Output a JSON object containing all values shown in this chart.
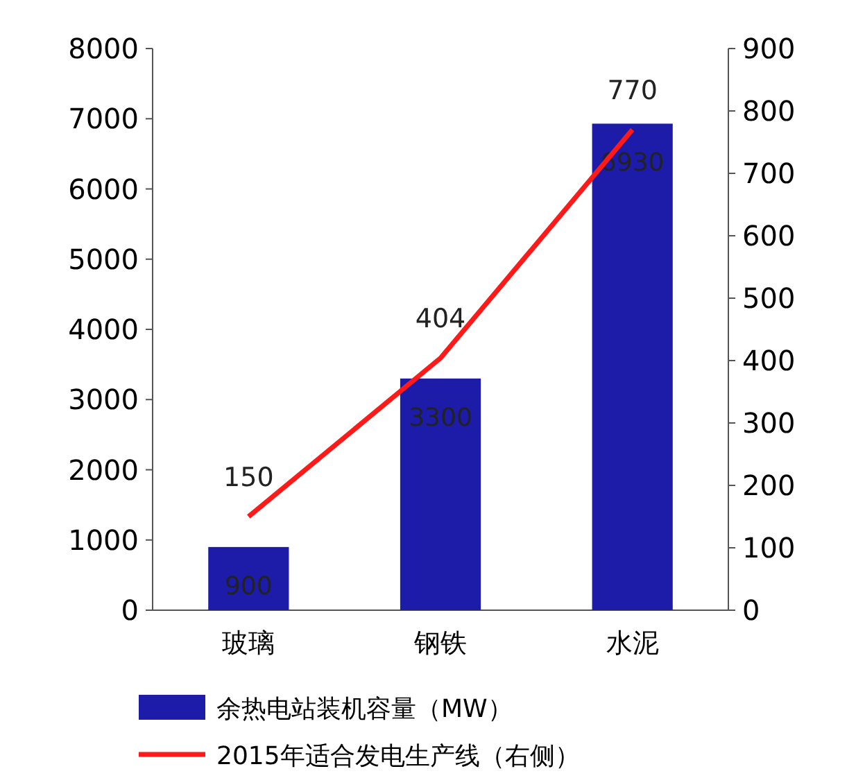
{
  "chart_data": {
    "type": "bar",
    "categories": [
      "玻璃",
      "钢铁",
      "水泥"
    ],
    "series": [
      {
        "name": "余热电站装机容量（MW）",
        "color": "#1c1ca8",
        "values": [
          900,
          3300,
          6930
        ]
      },
      {
        "name": "2015年适合发电生产线（右侧）",
        "type": "line",
        "axis": "y2",
        "color": "#ff1a1a",
        "values": [
          150,
          404,
          770
        ]
      }
    ],
    "ylim": [
      0,
      8000
    ],
    "yticks": [
      0,
      1000,
      2000,
      3000,
      4000,
      5000,
      6000,
      7000,
      8000
    ],
    "y2lim": [
      0,
      900
    ],
    "y2ticks": [
      0,
      100,
      200,
      300,
      400,
      500,
      600,
      700,
      800,
      900
    ],
    "data_labels": true,
    "legend": "bottom"
  }
}
